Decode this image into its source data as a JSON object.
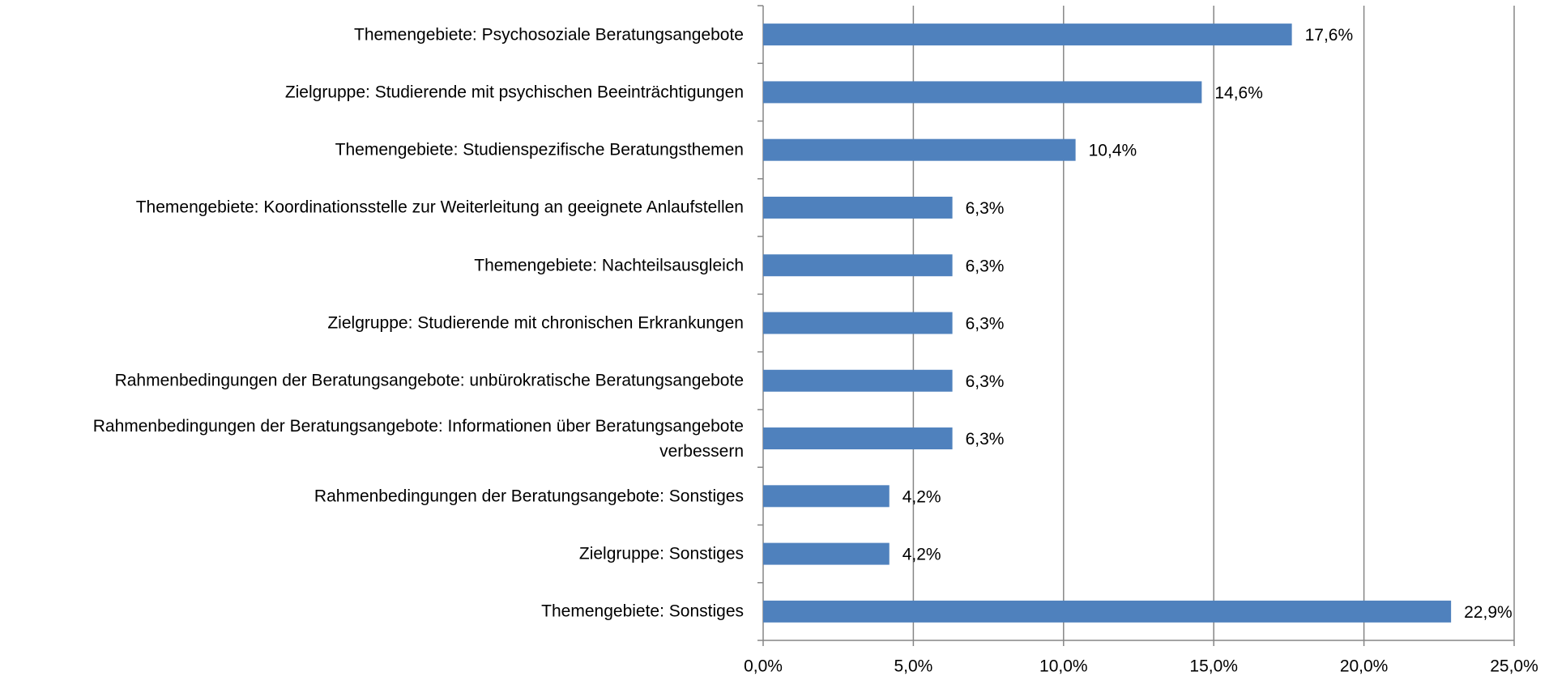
{
  "chart_data": {
    "type": "bar",
    "orientation": "horizontal",
    "categories": [
      "Themengebiete: Psychosoziale Beratungsangebote",
      "Zielgruppe: Studierende mit psychischen Beeinträchtigungen",
      "Themengebiete: Studienspezifische Beratungsthemen",
      "Themengebiete: Koordinationsstelle zur Weiterleitung an geeignete Anlaufstellen",
      "Themengebiete: Nachteilsausgleich",
      "Zielgruppe: Studierende mit chronischen Erkrankungen",
      "Rahmenbedingungen der Beratungsangebote: unbürokratische Beratungsangebote",
      "Rahmenbedingungen der Beratungsangebote: Informationen über Beratungsangebote verbessern",
      "Rahmenbedingungen der Beratungsangebote: Sonstiges",
      "Zielgruppe: Sonstiges",
      "Themengebiete: Sonstiges"
    ],
    "values": [
      17.6,
      14.6,
      10.4,
      6.3,
      6.3,
      6.3,
      6.3,
      6.3,
      4.2,
      4.2,
      22.9
    ],
    "value_labels": [
      "17,6%",
      "14,6%",
      "10,4%",
      "6,3%",
      "6,3%",
      "6,3%",
      "6,3%",
      "6,3%",
      "4,2%",
      "4,2%",
      "22,9%"
    ],
    "color": "#4f81bd",
    "xlim": [
      0,
      25
    ],
    "xticks": [
      {
        "value": 0,
        "label": "0,0%"
      },
      {
        "value": 5,
        "label": "5,0%"
      },
      {
        "value": 10,
        "label": "10,0%"
      },
      {
        "value": 15,
        "label": "15,0%"
      },
      {
        "value": 20,
        "label": "20,0%"
      },
      {
        "value": 25,
        "label": "25,0%"
      }
    ],
    "grid": true
  }
}
